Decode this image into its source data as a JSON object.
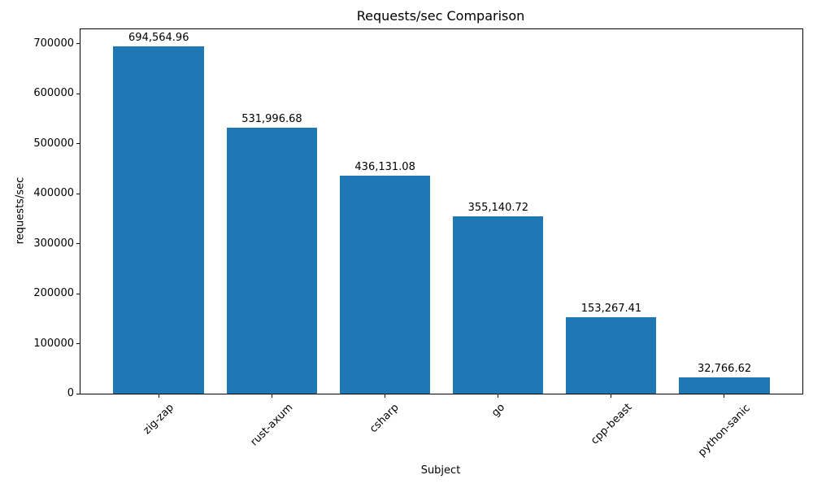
{
  "chart_data": {
    "type": "bar",
    "title": "Requests/sec Comparison",
    "xlabel": "Subject",
    "ylabel": "requests/sec",
    "categories": [
      "zig-zap",
      "rust-axum",
      "csharp",
      "go",
      "cpp-beast",
      "python-sanic"
    ],
    "values": [
      694564.96,
      531996.68,
      436131.08,
      355140.72,
      153267.41,
      32766.62
    ],
    "value_labels": [
      "694,564.96",
      "531,996.68",
      "436,131.08",
      "355,140.72",
      "153,267.41",
      "32,766.62"
    ],
    "bar_color": "#1f77b4",
    "ylim": [
      0,
      729293
    ],
    "yticks": [
      0,
      100000,
      200000,
      300000,
      400000,
      500000,
      600000,
      700000
    ],
    "ytick_labels": [
      "0",
      "100000",
      "200000",
      "300000",
      "400000",
      "500000",
      "600000",
      "700000"
    ],
    "x_tick_rotation": 45,
    "grid": false,
    "legend": "none"
  }
}
